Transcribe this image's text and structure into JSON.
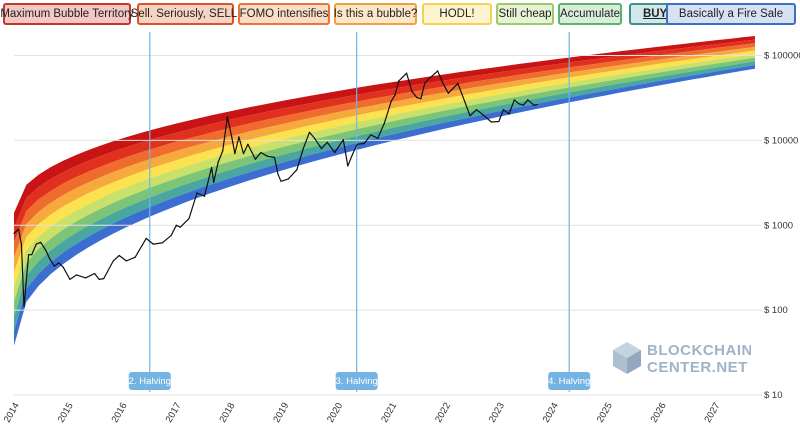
{
  "legend": [
    {
      "label": "Maximum Bubble Territory",
      "fill": "#f4c7c3",
      "border": "#c0392b"
    },
    {
      "label": "Sell. Seriously, SELL!",
      "fill": "#f7d3c2",
      "border": "#d9532c"
    },
    {
      "label": "FOMO intensifies",
      "fill": "#fbdcc5",
      "border": "#e8743b"
    },
    {
      "label": "Is this a bubble?",
      "fill": "#fde7c9",
      "border": "#f0a040"
    },
    {
      "label": "HODL!",
      "fill": "#fdf4cf",
      "border": "#f3d34a"
    },
    {
      "label": "Still cheap",
      "fill": "#e8f2d4",
      "border": "#9cc96b"
    },
    {
      "label": "Accumulate",
      "fill": "#d8eedb",
      "border": "#59b36b"
    },
    {
      "label": "BUY!",
      "fill": "#d3e8ea",
      "border": "#3f8f8f",
      "bold": true
    },
    {
      "label": "Basically a Fire Sale",
      "fill": "#d6e1f3",
      "border": "#3d6fc4"
    }
  ],
  "band_colors": [
    "#c81414",
    "#e0301e",
    "#ef6c2e",
    "#f6a93c",
    "#fde24f",
    "#c9e06b",
    "#7cc576",
    "#4aa7a0",
    "#3b6ed0"
  ],
  "chart_data": {
    "type": "line",
    "title": "",
    "xlabel": "",
    "ylabel": "",
    "y_scale": "log",
    "ylim": [
      10,
      200000
    ],
    "xlim": [
      "2014-01-01",
      "2027-10-01"
    ],
    "y_ticks": [
      {
        "value": 10,
        "label": "$ 10"
      },
      {
        "value": 100,
        "label": "$ 100"
      },
      {
        "value": 1000,
        "label": "$ 1000"
      },
      {
        "value": 10000,
        "label": "$ 10000"
      },
      {
        "value": 100000,
        "label": "$ 100000"
      }
    ],
    "x_ticks": [
      "2014",
      "2015",
      "2016",
      "2017",
      "2018",
      "2019",
      "2020",
      "2021",
      "2022",
      "2023",
      "2024",
      "2025",
      "2026",
      "2027"
    ],
    "halvings": [
      {
        "label": "2. Halving",
        "date": "2016-07-09"
      },
      {
        "label": "3. Halving",
        "date": "2020-05-11"
      },
      {
        "label": "4. Halving",
        "date": "2024-04-20"
      }
    ],
    "rainbow": {
      "bands": 9,
      "top_start": 1400,
      "bottom_start": 38,
      "top_end": 170000,
      "bottom_end": 70000,
      "start": "2014-01-01",
      "end": "2027-10-01"
    },
    "series": [
      {
        "x": [
          "2014-01-01",
          "2014-02-01",
          "2014-02-20",
          "2014-03-10",
          "2014-04-10",
          "2014-05-01",
          "2014-06-01",
          "2014-07-01",
          "2014-08-01",
          "2014-09-01",
          "2014-10-01",
          "2014-11-01",
          "2014-12-01",
          "2015-01-15",
          "2015-03-01",
          "2015-05-01",
          "2015-07-01",
          "2015-08-01",
          "2015-09-01",
          "2015-11-05",
          "2015-12-15",
          "2016-02-01",
          "2016-04-01",
          "2016-06-15",
          "2016-08-01",
          "2016-10-01",
          "2016-12-01",
          "2017-01-05",
          "2017-02-01",
          "2017-04-01",
          "2017-05-25",
          "2017-07-15",
          "2017-09-01",
          "2017-09-15",
          "2017-10-15",
          "2017-11-15",
          "2017-12-17",
          "2018-01-15",
          "2018-02-06",
          "2018-03-05",
          "2018-04-05",
          "2018-05-05",
          "2018-06-25",
          "2018-08-01",
          "2018-09-15",
          "2018-11-01",
          "2018-11-25",
          "2018-12-15",
          "2019-02-01",
          "2019-04-01",
          "2019-05-15",
          "2019-06-26",
          "2019-08-01",
          "2019-09-15",
          "2019-10-25",
          "2019-12-15",
          "2020-02-10",
          "2020-03-12",
          "2020-04-15",
          "2020-05-15",
          "2020-07-01",
          "2020-08-15",
          "2020-10-01",
          "2020-11-15",
          "2020-12-31",
          "2021-01-25",
          "2021-02-20",
          "2021-04-14",
          "2021-05-20",
          "2021-06-22",
          "2021-07-20",
          "2021-08-15",
          "2021-09-07",
          "2021-10-20",
          "2021-11-10",
          "2021-12-15",
          "2022-01-22",
          "2022-03-28",
          "2022-05-12",
          "2022-06-18",
          "2022-08-01",
          "2022-09-15",
          "2022-11-09",
          "2022-12-30",
          "2023-01-30",
          "2023-03-10",
          "2023-04-14",
          "2023-05-15",
          "2023-06-15",
          "2023-07-15",
          "2023-08-25",
          "2023-09-15"
        ],
        "values": [
          800,
          900,
          600,
          110,
          450,
          450,
          600,
          630,
          520,
          400,
          330,
          360,
          320,
          230,
          260,
          240,
          270,
          230,
          235,
          380,
          440,
          380,
          420,
          700,
          600,
          620,
          760,
          1000,
          950,
          1200,
          2400,
          2200,
          4800,
          3200,
          5500,
          7500,
          19000,
          11000,
          7000,
          11000,
          7000,
          9000,
          6000,
          7200,
          6500,
          6300,
          4000,
          3300,
          3500,
          4500,
          8000,
          12500,
          10500,
          8000,
          9500,
          7200,
          10200,
          5000,
          7000,
          9000,
          9200,
          11600,
          10600,
          16000,
          29000,
          34000,
          50000,
          62000,
          38000,
          32000,
          31000,
          47000,
          52000,
          61000,
          66000,
          48000,
          36000,
          47000,
          29000,
          19500,
          23000,
          20000,
          16500,
          16700,
          23000,
          20500,
          30000,
          27000,
          26000,
          30000,
          26000,
          26500
        ]
      }
    ]
  },
  "watermark": {
    "line1": "BLOCKCHAIN",
    "line2": "CENTER.NET"
  }
}
